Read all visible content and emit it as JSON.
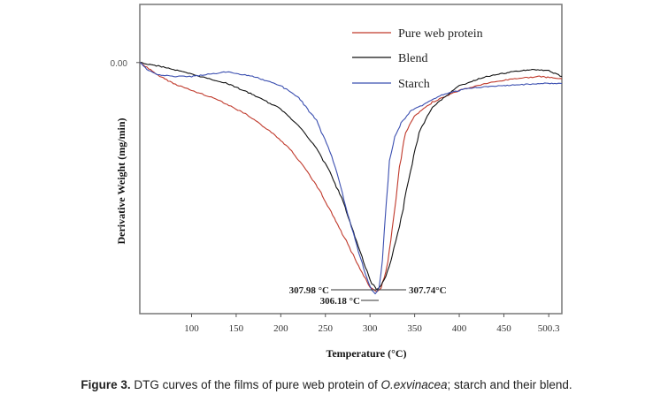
{
  "chart_data": {
    "type": "line",
    "title": "",
    "xlabel": "Temperature (°C)",
    "ylabel": "Derivative Weight (mg/min)",
    "xlim": [
      42,
      515
    ],
    "ylim": [
      -1.08,
      0.25
    ],
    "x_ticks": [
      100,
      150,
      200,
      250,
      300,
      350,
      400,
      450,
      500.3
    ],
    "x_tick_labels": [
      "100",
      "150",
      "200",
      "250",
      "300",
      "350",
      "400",
      "450",
      "500.3"
    ],
    "y_tick_labels": [
      "0.00"
    ],
    "y_ticks": [
      0
    ],
    "grid": false,
    "legend_position": "top-right",
    "series": [
      {
        "name": "Pure web protein",
        "color": "#c0392b",
        "x": [
          42,
          50,
          60,
          80,
          100,
          130,
          160,
          190,
          210,
          230,
          245,
          260,
          275,
          285,
          295,
          300,
          305,
          307.98,
          312,
          318,
          325,
          333,
          340,
          350,
          370,
          400,
          430,
          460,
          490,
          515
        ],
        "y": [
          0.0,
          -0.02,
          -0.05,
          -0.09,
          -0.12,
          -0.16,
          -0.22,
          -0.3,
          -0.37,
          -0.47,
          -0.56,
          -0.67,
          -0.78,
          -0.86,
          -0.93,
          -0.965,
          -0.98,
          -0.985,
          -0.97,
          -0.9,
          -0.72,
          -0.45,
          -0.3,
          -0.23,
          -0.17,
          -0.12,
          -0.09,
          -0.07,
          -0.06,
          -0.07
        ]
      },
      {
        "name": "Blend",
        "color": "#111111",
        "x": [
          42,
          55,
          70,
          90,
          110,
          140,
          170,
          200,
          220,
          240,
          255,
          270,
          285,
          295,
          302,
          307.74,
          312,
          318,
          325,
          335,
          345,
          355,
          370,
          400,
          430,
          460,
          480,
          500,
          515
        ],
        "y": [
          0.0,
          -0.01,
          -0.02,
          -0.04,
          -0.06,
          -0.09,
          -0.14,
          -0.2,
          -0.27,
          -0.37,
          -0.47,
          -0.6,
          -0.77,
          -0.88,
          -0.95,
          -0.975,
          -0.96,
          -0.92,
          -0.83,
          -0.67,
          -0.47,
          -0.3,
          -0.19,
          -0.1,
          -0.06,
          -0.04,
          -0.03,
          -0.035,
          -0.06
        ]
      },
      {
        "name": "Starch",
        "color": "#3b4fb0",
        "x": [
          42,
          50,
          60,
          80,
          100,
          120,
          140,
          170,
          200,
          220,
          240,
          255,
          265,
          275,
          285,
          295,
          302,
          306.18,
          310,
          314,
          318,
          322,
          328,
          335,
          345,
          360,
          380,
          410,
          450,
          490,
          515
        ],
        "y": [
          0.0,
          -0.03,
          -0.05,
          -0.06,
          -0.06,
          -0.05,
          -0.04,
          -0.06,
          -0.1,
          -0.15,
          -0.25,
          -0.38,
          -0.5,
          -0.65,
          -0.79,
          -0.91,
          -0.98,
          -0.995,
          -0.97,
          -0.85,
          -0.6,
          -0.42,
          -0.32,
          -0.26,
          -0.21,
          -0.18,
          -0.14,
          -0.11,
          -0.1,
          -0.09,
          -0.09
        ]
      }
    ],
    "annotations": [
      {
        "label": "307.98 °C",
        "series": "Pure web protein",
        "x": 307.98,
        "side": "left"
      },
      {
        "label": "306.18 °C",
        "series": "Starch",
        "x": 306.18,
        "side": "left"
      },
      {
        "label": "307.74°C",
        "series": "Blend",
        "x": 307.74,
        "side": "right"
      }
    ]
  },
  "caption": {
    "figure_label": "Figure 3.",
    "text_before_italic": " DTG curves of the films of pure web protein of ",
    "italic": "O.exvinacea",
    "text_after_italic": "; starch and their blend."
  }
}
